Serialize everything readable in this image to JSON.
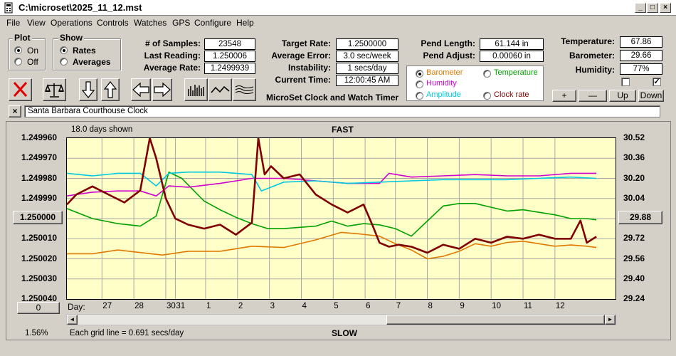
{
  "window": {
    "title": "C:\\microset\\2025_11_12.mst",
    "minimize": "_",
    "maximize": "□",
    "close": "×"
  },
  "menu": [
    "File",
    "View",
    "Operations",
    "Controls",
    "Watches",
    "GPS",
    "Configure",
    "Help"
  ],
  "plot_group": {
    "label": "Plot",
    "options": [
      "On",
      "Off"
    ],
    "selected": "On"
  },
  "show_group": {
    "label": "Show",
    "options": [
      "Rates",
      "Averages"
    ],
    "selected": "Rates"
  },
  "stats": {
    "samples_label": "# of Samples:",
    "samples": "23548",
    "last_reading_label": "Last Reading:",
    "last_reading": "1.250006",
    "average_rate_label": "Average Rate:",
    "average_rate": "1.2499939",
    "target_rate_label": "Target Rate:",
    "target_rate": "1.2500000",
    "average_error_label": "Average Error:",
    "average_error": "3.0 sec/week",
    "instability_label": "Instability:",
    "instability": "1 secs/day",
    "current_time_label": "Current Time:",
    "current_time": "12:00:45 AM",
    "pend_length_label": "Pend Length:",
    "pend_length": "61.144 in",
    "pend_adjust_label": "Pend Adjust:",
    "pend_adjust": "0.00060 in",
    "temperature_label": "Temperature:",
    "temperature": "67.86",
    "barometer_label": "Barometer:",
    "barometer": "29.66",
    "humidity_label": "Humidity:",
    "humidity": "77%"
  },
  "app_caption": "MicroSet Clock and Watch Timer",
  "sensor_select": {
    "selected": "Barometer",
    "options": [
      {
        "label": "Barometer",
        "color": "#e07800"
      },
      {
        "label": "Temperature",
        "color": "#00a000"
      },
      {
        "label": "Humidity",
        "color": "#d000d0"
      },
      {
        "label": "Amplitude",
        "color": "#00c8e0"
      },
      {
        "label": "Clock rate",
        "color": "#800000"
      }
    ]
  },
  "checkboxes": {
    "first_checked": false,
    "second_checked": true
  },
  "scale_buttons": [
    "+",
    "—",
    "Up",
    "Down"
  ],
  "clock_name": "Santa Barbara Courthouse Clock",
  "clock_close": "×",
  "toolbar_icons": [
    "close-x-icon",
    "balance-scale-icon",
    "arrow-down-icon",
    "arrow-up-icon",
    "arrow-left-icon",
    "arrow-right-icon",
    "bar-chart-icon",
    "line-wave-icon",
    "multi-wave-icon"
  ],
  "chart_texts": {
    "days_shown": "18.0 days shown",
    "fast": "FAST",
    "slow": "SLOW",
    "grid_note": "Each grid line = 0.691 secs/day",
    "percent": "1.56%",
    "day_label": "Day:",
    "left_center_button": "1.250000",
    "right_center_button": "29.88",
    "left_bottom_button": "0",
    "scroll_left": "◄",
    "scroll_right": "►"
  },
  "chart_data": {
    "type": "line",
    "left_axis": {
      "ticks": [
        "1.249960",
        "1.249970",
        "1.249980",
        "1.249990",
        "1.250000",
        "1.250010",
        "1.250020",
        "1.250030",
        "1.250040"
      ],
      "range": [
        1.24996,
        1.25004
      ],
      "inverted": true
    },
    "right_axis": {
      "ticks": [
        "30.52",
        "30.36",
        "30.20",
        "30.04",
        "29.88",
        "29.72",
        "29.56",
        "29.40",
        "29.24"
      ],
      "range": [
        30.52,
        29.24
      ]
    },
    "day_ticks": [
      {
        "label": "27",
        "day": 0.3
      },
      {
        "label": "28",
        "day": 1.3
      },
      {
        "label": "30",
        "day": 2.3
      },
      {
        "label": "31",
        "day": 2.6
      },
      {
        "label": "1",
        "day": 3.55
      },
      {
        "label": "2",
        "day": 4.55
      },
      {
        "label": "3",
        "day": 5.55
      },
      {
        "label": "4",
        "day": 6.55
      },
      {
        "label": "5",
        "day": 7.55
      },
      {
        "label": "6",
        "day": 8.55
      },
      {
        "label": "7",
        "day": 9.5
      },
      {
        "label": "8",
        "day": 10.5
      },
      {
        "label": "9",
        "day": 11.5
      },
      {
        "label": "10",
        "day": 12.5
      },
      {
        "label": "11",
        "day": 13.5
      },
      {
        "label": "12",
        "day": 14.5
      }
    ],
    "day_range": [
      -0.8,
      16.4
    ],
    "series": [
      {
        "name": "Barometer",
        "axis": "right",
        "color": "#e07800",
        "x": [
          -0.8,
          0.0,
          0.8,
          1.5,
          2.2,
          3.0,
          4.0,
          5.0,
          6.0,
          7.0,
          7.8,
          8.3,
          9.0,
          9.5,
          10.0,
          10.5,
          11.0,
          11.5,
          12.0,
          12.5,
          13.0,
          13.5,
          14.0,
          14.5,
          15.0,
          15.5,
          15.8
        ],
        "values": [
          29.6,
          29.6,
          29.63,
          29.61,
          29.59,
          29.62,
          29.62,
          29.66,
          29.65,
          29.71,
          29.77,
          29.76,
          29.74,
          29.68,
          29.63,
          29.56,
          29.58,
          29.62,
          29.68,
          29.66,
          29.69,
          29.7,
          29.68,
          29.66,
          29.67,
          29.66,
          29.65
        ]
      },
      {
        "name": "Temperature",
        "axis": "right",
        "color": "#00a000",
        "x": [
          -0.8,
          0.0,
          0.8,
          1.5,
          2.0,
          2.4,
          2.8,
          3.5,
          4.0,
          4.5,
          5.0,
          5.5,
          6.0,
          7.0,
          7.5,
          8.0,
          8.5,
          9.0,
          9.5,
          10.0,
          10.5,
          11.0,
          11.5,
          12.0,
          12.5,
          13.0,
          13.5,
          14.0,
          14.5,
          15.0,
          15.5,
          15.8
        ],
        "values": [
          29.96,
          29.88,
          29.84,
          29.82,
          29.9,
          30.25,
          30.2,
          30.02,
          29.95,
          29.89,
          29.84,
          29.8,
          29.8,
          29.82,
          29.86,
          29.82,
          29.84,
          29.83,
          29.8,
          29.74,
          29.86,
          29.98,
          30.0,
          30.0,
          29.97,
          29.94,
          29.95,
          29.93,
          29.91,
          29.88,
          29.88,
          29.87
        ]
      },
      {
        "name": "Humidity",
        "axis": "right",
        "color": "#d000d0",
        "x": [
          -0.8,
          0.0,
          0.8,
          1.5,
          2.0,
          2.4,
          3.0,
          4.0,
          5.0,
          6.0,
          7.0,
          8.0,
          9.0,
          9.3,
          10.0,
          11.0,
          12.0,
          13.0,
          14.0,
          15.0,
          15.8
        ],
        "values": [
          30.06,
          30.09,
          30.1,
          30.1,
          30.06,
          30.14,
          30.13,
          30.16,
          30.2,
          30.2,
          30.18,
          30.16,
          30.16,
          30.24,
          30.21,
          30.22,
          30.23,
          30.22,
          30.22,
          30.24,
          30.24
        ]
      },
      {
        "name": "Amplitude",
        "axis": "right",
        "color": "#00c8e0",
        "x": [
          -0.8,
          0.0,
          0.8,
          1.5,
          2.0,
          2.4,
          3.0,
          4.0,
          5.0,
          5.3,
          6.0,
          7.0,
          8.0,
          9.0,
          10.0,
          11.0,
          12.0,
          13.0,
          14.0,
          15.0,
          15.8
        ],
        "values": [
          30.24,
          30.22,
          30.24,
          30.24,
          30.14,
          30.24,
          30.25,
          30.25,
          30.23,
          30.1,
          30.17,
          30.18,
          30.16,
          30.17,
          30.18,
          30.19,
          30.19,
          30.19,
          30.2,
          30.21,
          30.2
        ]
      },
      {
        "name": "Clock rate",
        "axis": "left",
        "color": "#800000",
        "x": [
          -0.8,
          -0.5,
          0.0,
          0.5,
          1.0,
          1.5,
          1.8,
          2.0,
          2.3,
          2.6,
          3.0,
          3.5,
          4.0,
          4.5,
          5.0,
          5.2,
          5.4,
          5.6,
          6.0,
          6.5,
          7.0,
          7.5,
          8.0,
          8.5,
          8.8,
          9.0,
          9.3,
          9.6,
          10.0,
          10.5,
          11.0,
          11.5,
          12.0,
          12.5,
          13.0,
          13.5,
          14.0,
          14.5,
          15.0,
          15.3,
          15.5,
          15.8
        ],
        "values": [
          1.249993,
          1.249988,
          1.249984,
          1.249988,
          1.249992,
          1.249986,
          1.24996,
          1.24997,
          1.24999,
          1.25,
          1.250003,
          1.250005,
          1.250003,
          1.250008,
          1.250002,
          1.24996,
          1.249978,
          1.249974,
          1.24998,
          1.249978,
          1.249988,
          1.249993,
          1.249997,
          1.249993,
          1.250004,
          1.250012,
          1.250014,
          1.250013,
          1.250014,
          1.250017,
          1.250013,
          1.250015,
          1.25001,
          1.250012,
          1.250009,
          1.25001,
          1.250008,
          1.25001,
          1.25001,
          1.250001,
          1.250012,
          1.250009
        ]
      }
    ]
  }
}
